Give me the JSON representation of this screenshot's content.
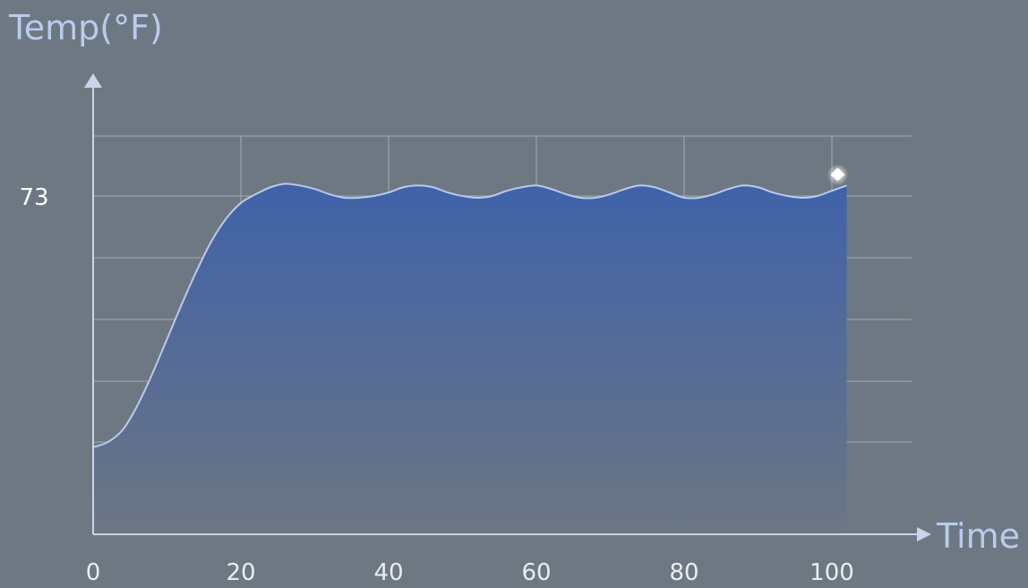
{
  "chart_data": {
    "type": "area",
    "ylabel": "Temp(°F)",
    "xlabel": "Time",
    "x_ticks": [
      "0",
      "20",
      "40",
      "60",
      "80",
      "100"
    ],
    "y_ticks": [
      "73"
    ],
    "xlim": [
      0,
      107
    ],
    "grid": true,
    "series": [
      {
        "x": [
          0,
          2,
          4,
          6,
          8,
          10,
          12,
          14,
          16,
          18,
          20,
          22,
          24,
          26,
          28,
          30,
          32,
          34,
          36,
          38,
          40,
          42,
          44,
          46,
          48,
          50,
          52,
          54,
          56,
          58,
          60,
          62,
          64,
          66,
          68,
          70,
          72,
          74,
          76,
          78,
          80,
          82,
          84,
          86,
          88,
          90,
          92,
          94,
          96,
          98,
          100,
          102
        ],
        "y": [
          58.6,
          58.9,
          59.6,
          61.0,
          62.8,
          64.8,
          66.8,
          68.7,
          70.4,
          71.7,
          72.6,
          73.1,
          73.5,
          73.7,
          73.6,
          73.4,
          73.1,
          72.9,
          72.9,
          73.0,
          73.2,
          73.5,
          73.6,
          73.5,
          73.2,
          73.0,
          72.9,
          73.0,
          73.3,
          73.5,
          73.6,
          73.4,
          73.1,
          72.9,
          72.9,
          73.1,
          73.4,
          73.6,
          73.5,
          73.2,
          72.9,
          72.9,
          73.1,
          73.4,
          73.6,
          73.5,
          73.2,
          73.0,
          72.9,
          73.0,
          73.3,
          73.6
        ]
      }
    ],
    "colors": {
      "fill_top": "#3f62a9",
      "fill_bottom": "#6c7684",
      "line": "#b7cbee",
      "grid": "#9aa3ad",
      "axis": "#c9d5ea",
      "axis_label": "#b9cbee",
      "background": "#6e7883"
    }
  }
}
